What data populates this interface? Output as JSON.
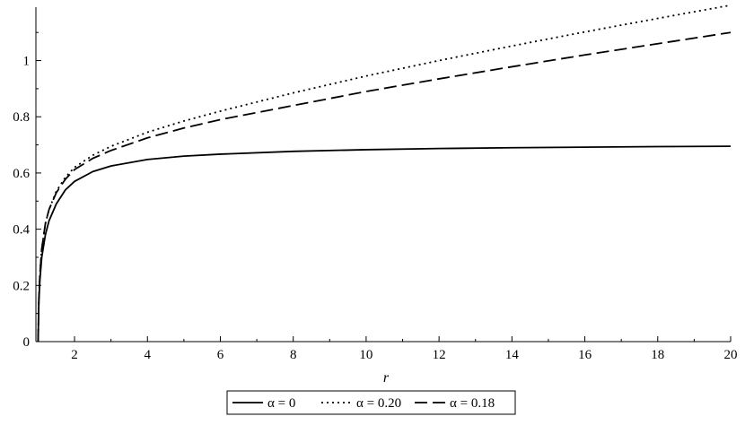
{
  "chart_data": {
    "type": "line",
    "title": "",
    "xlabel": "r",
    "ylabel": "",
    "xlim": [
      0.94,
      20
    ],
    "ylim": [
      0,
      1.19
    ],
    "xticks": [
      2,
      4,
      6,
      8,
      10,
      12,
      14,
      16,
      18,
      20
    ],
    "yticks": [
      0,
      0.2,
      0.4,
      0.6,
      0.8,
      1
    ],
    "grid": false,
    "legend_position": "bottom-center",
    "series": [
      {
        "name": "α = 0",
        "style": "solid",
        "color": "#000000",
        "x": [
          1.0,
          1.02,
          1.05,
          1.1,
          1.2,
          1.3,
          1.5,
          1.75,
          2.0,
          2.5,
          3.0,
          4.0,
          5.0,
          6.0,
          8.0,
          10.0,
          12.0,
          14.0,
          16.0,
          18.0,
          20.0
        ],
        "y": [
          0.0,
          0.14,
          0.22,
          0.3,
          0.38,
          0.43,
          0.49,
          0.54,
          0.57,
          0.605,
          0.625,
          0.648,
          0.66,
          0.667,
          0.677,
          0.683,
          0.687,
          0.69,
          0.692,
          0.694,
          0.695
        ]
      },
      {
        "name": "α = 0.20",
        "style": "dotted",
        "color": "#000000",
        "x": [
          1.0,
          1.02,
          1.05,
          1.1,
          1.2,
          1.3,
          1.5,
          1.75,
          2.0,
          2.5,
          3.0,
          4.0,
          5.0,
          6.0,
          8.0,
          10.0,
          12.0,
          14.0,
          16.0,
          18.0,
          20.0
        ],
        "y": [
          0.0,
          0.15,
          0.24,
          0.33,
          0.42,
          0.47,
          0.535,
          0.585,
          0.62,
          0.663,
          0.695,
          0.745,
          0.785,
          0.82,
          0.885,
          0.945,
          1.0,
          1.052,
          1.102,
          1.15,
          1.197
        ]
      },
      {
        "name": "α = 0.18",
        "style": "dashed",
        "color": "#000000",
        "x": [
          1.0,
          1.02,
          1.05,
          1.1,
          1.2,
          1.3,
          1.5,
          1.75,
          2.0,
          2.5,
          3.0,
          4.0,
          5.0,
          6.0,
          8.0,
          10.0,
          12.0,
          14.0,
          16.0,
          18.0,
          20.0
        ],
        "y": [
          0.0,
          0.15,
          0.24,
          0.33,
          0.42,
          0.47,
          0.53,
          0.578,
          0.612,
          0.652,
          0.68,
          0.725,
          0.76,
          0.79,
          0.84,
          0.89,
          0.935,
          0.978,
          1.02,
          1.06,
          1.1
        ]
      }
    ]
  }
}
